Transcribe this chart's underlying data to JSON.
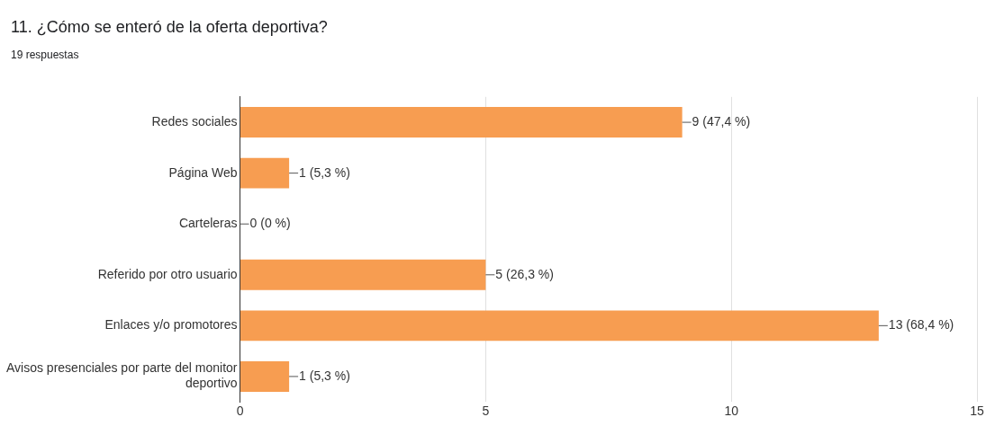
{
  "chart_data": {
    "type": "bar",
    "orientation": "horizontal",
    "title": "11. ¿Cómo se enteró de la oferta deportiva?",
    "subtitle": "19 respuestas",
    "categories": [
      "Redes sociales",
      "Página Web",
      "Carteleras",
      "Referido por otro usuario",
      "Enlaces y/o promotores",
      "Avisos presenciales por parte del monitor deportivo"
    ],
    "values": [
      9,
      1,
      0,
      5,
      13,
      1
    ],
    "value_labels": [
      "9 (47,4 %)",
      "1 (5,3 %)",
      "0 (0 %)",
      "5 (26,3 %)",
      "13 (68,4 %)",
      "1 (5,3 %)"
    ],
    "color": "#f79d51",
    "xlim": [
      0,
      15
    ],
    "xticks": [
      0,
      5,
      10,
      15
    ],
    "grid": "x",
    "legend": false
  }
}
